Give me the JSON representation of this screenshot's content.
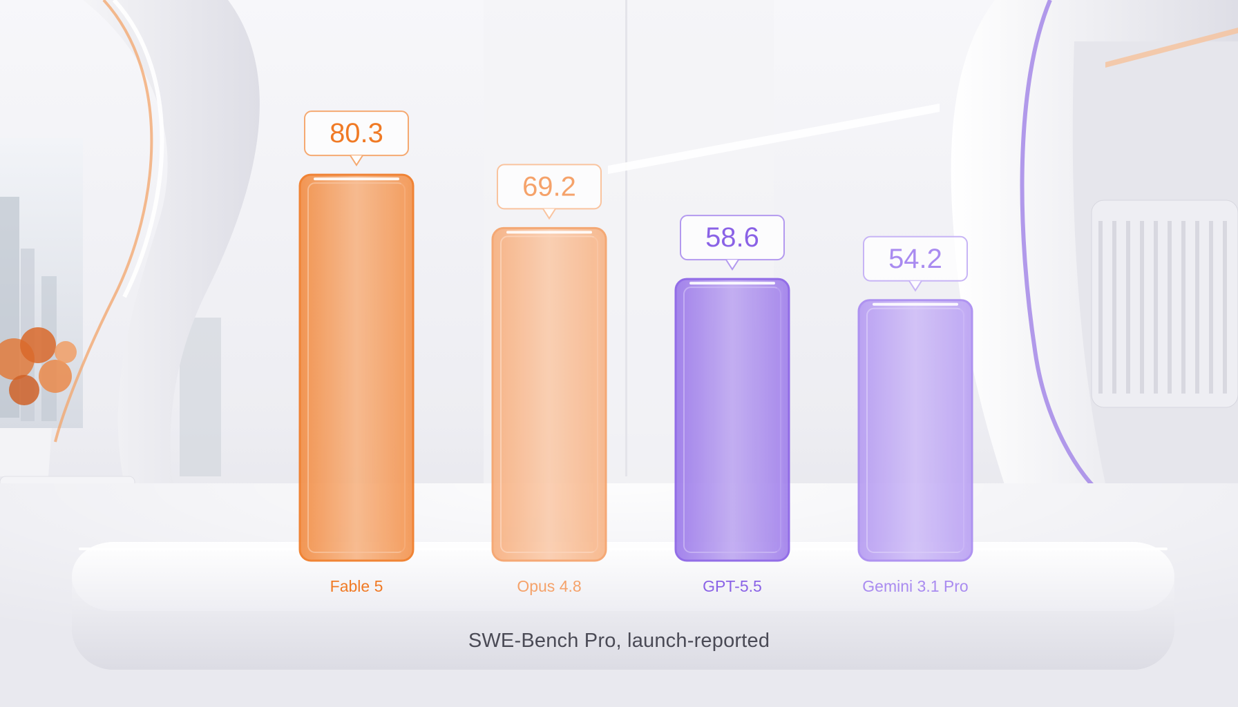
{
  "colors": {
    "orange": "#f07a25",
    "light_orange": "#f5a26a",
    "purple": "#8a62e6",
    "lilac": "#a98bf0"
  },
  "chart_data": {
    "type": "bar",
    "title": "",
    "caption": "SWE-Bench Pro, launch-reported",
    "categories": [
      "Fable 5",
      "Opus 4.8",
      "GPT-5.5",
      "Gemini 3.1 Pro"
    ],
    "values": [
      80.3,
      69.2,
      58.6,
      54.2
    ],
    "value_labels": [
      "80.3",
      "69.2",
      "58.6",
      "54.2"
    ],
    "bar_colors": [
      "orange",
      "light_orange",
      "purple",
      "lilac"
    ],
    "xlabel": "",
    "ylabel": "",
    "grid": false,
    "legend": "none"
  }
}
